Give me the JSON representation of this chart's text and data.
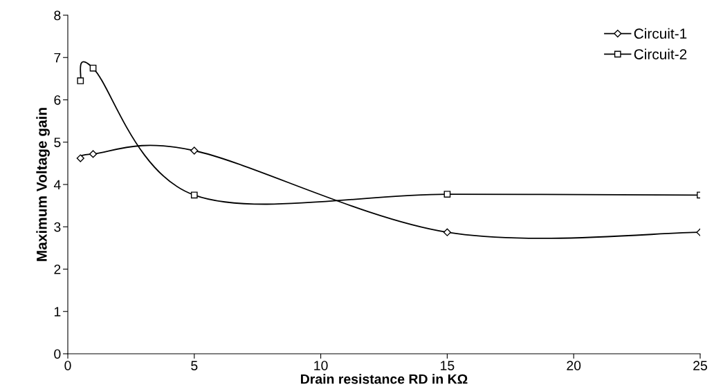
{
  "chart_data": {
    "type": "line",
    "xlabel": "Drain resistance RD in KΩ",
    "ylabel": "Maximum Voltage gain",
    "x": [
      0.5,
      1,
      5,
      15,
      25
    ],
    "series": [
      {
        "name": "Circuit-1",
        "color": "#000000",
        "marker": "diamond",
        "values": [
          4.62,
          4.72,
          4.8,
          2.87,
          2.87
        ]
      },
      {
        "name": "Circuit-2",
        "color": "#000000",
        "marker": "square",
        "values": [
          6.45,
          6.75,
          3.75,
          3.77,
          3.75
        ]
      }
    ],
    "xlim": [
      0,
      25
    ],
    "xticks": [
      0,
      5,
      10,
      15,
      20,
      25
    ],
    "ylim": [
      0,
      8
    ],
    "yticks": [
      0,
      1,
      2,
      3,
      4,
      5,
      6,
      7,
      8
    ],
    "grid": false,
    "legend": "top right",
    "line_style": "solid"
  }
}
